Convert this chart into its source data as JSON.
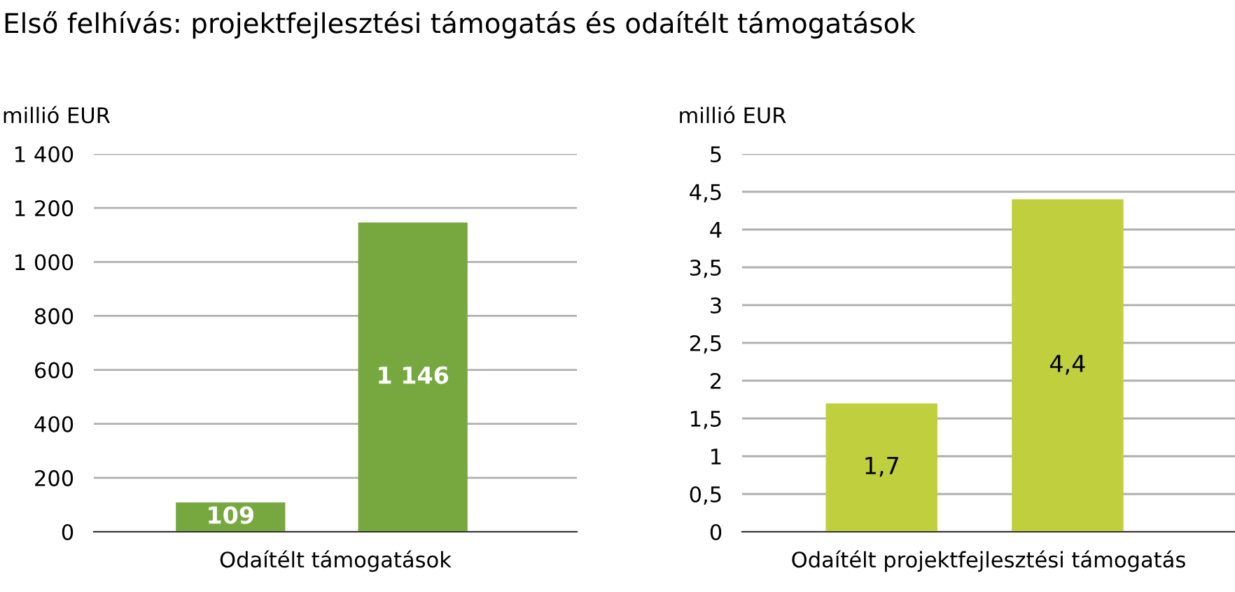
{
  "chart_data": [
    {
      "type": "bar",
      "title": "Első felhívás: projektfejlesztési támogatás és odaítélt támogatások",
      "ylabel": "millió EUR",
      "xlabel": "Odaítélt támogatások",
      "categories": [
        null,
        null
      ],
      "series": [
        {
          "color": "#76a83f",
          "values": [
            109,
            1146
          ],
          "value_labels": [
            "109",
            "1 146"
          ]
        }
      ],
      "ylim": [
        0,
        1400
      ],
      "yticks": [
        0,
        200,
        400,
        600,
        800,
        {
          "value": 1000,
          "label": "1 000"
        },
        {
          "value": 1200,
          "label": "1 200"
        },
        {
          "value": 1400,
          "label": "1 400"
        }
      ],
      "grid": "y"
    },
    {
      "type": "bar",
      "ylabel": "millió EUR",
      "xlabel": "Odaítélt projektfejlesztési támogatás",
      "categories": [
        null,
        null
      ],
      "series": [
        {
          "color": "#c0cf3d",
          "values": [
            1.7,
            4.4
          ],
          "value_labels": [
            "1,7",
            "4,4"
          ]
        }
      ],
      "ylim": [
        0,
        5
      ],
      "yticks": [
        0,
        {
          "value": 0.5,
          "label": "0,5"
        },
        1,
        {
          "value": 1.5,
          "label": "1,5"
        },
        2,
        {
          "value": 2.5,
          "label": "2,5"
        },
        3,
        {
          "value": 3.5,
          "label": "3,5"
        },
        4,
        {
          "value": 4.5,
          "label": "4,5"
        },
        5
      ],
      "grid": "y"
    }
  ]
}
